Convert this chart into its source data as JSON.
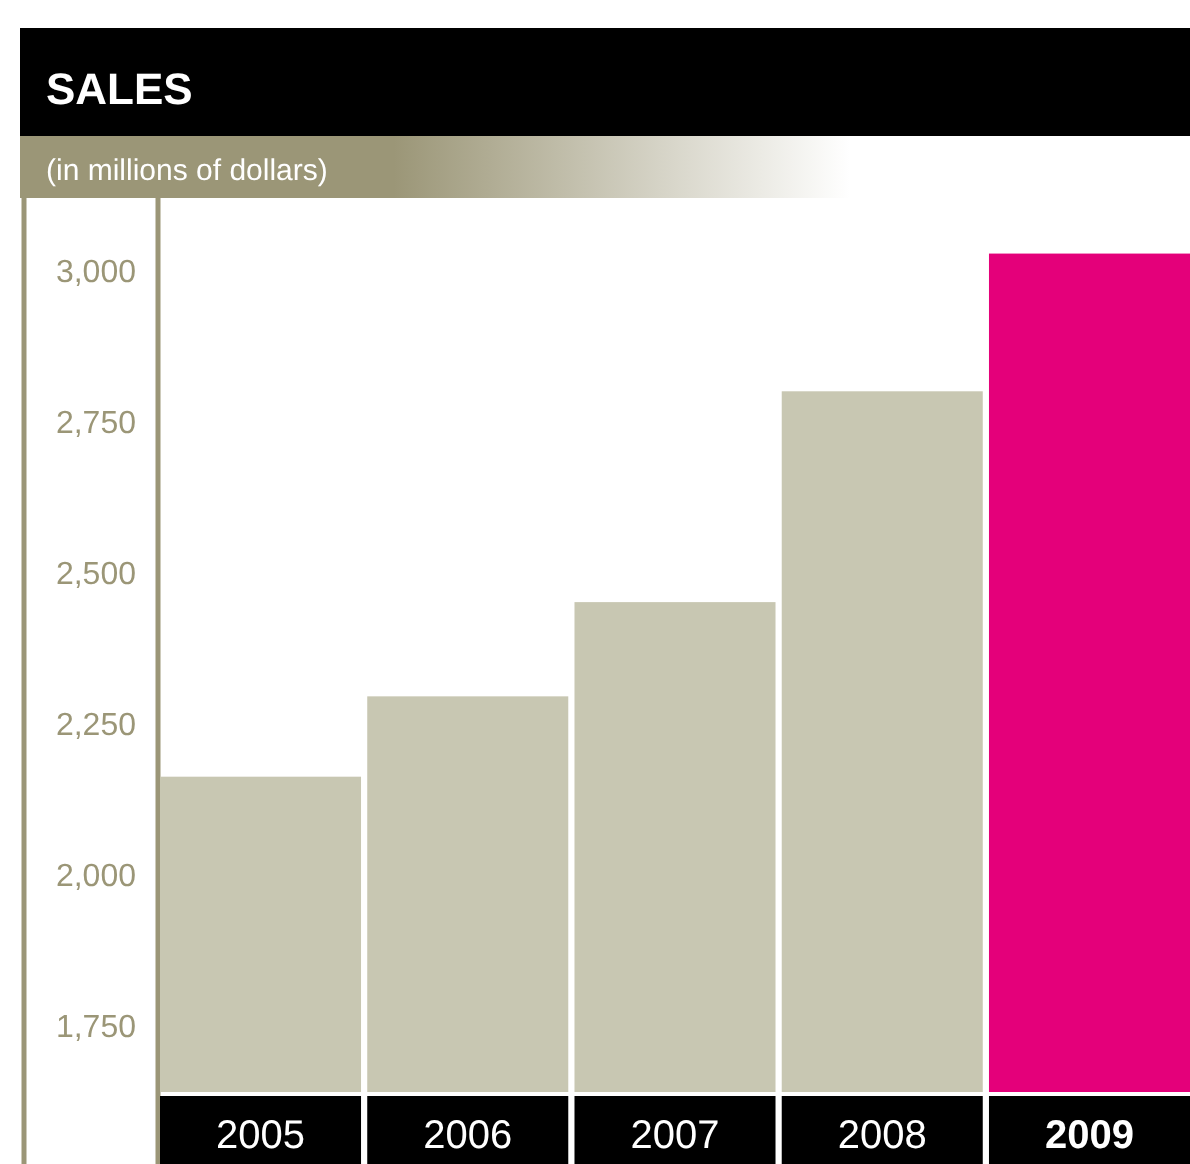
{
  "chart_data": {
    "type": "bar",
    "title": "SALES",
    "subtitle": "(in millions of dollars)",
    "categories": [
      "2005",
      "2006",
      "2007",
      "2008",
      "2009"
    ],
    "values": [
      2162,
      2295,
      2451,
      2800,
      3028
    ],
    "colors": [
      "#c8c7b2",
      "#c8c7b2",
      "#c8c7b2",
      "#c8c7b2",
      "#e4007a"
    ],
    "ylim": [
      1640,
      3120
    ],
    "yticks": [
      {
        "value": 1750,
        "label": "1,750"
      },
      {
        "value": 2000,
        "label": "2,000"
      },
      {
        "value": 2250,
        "label": "2,250"
      },
      {
        "value": 2500,
        "label": "2,500"
      },
      {
        "value": 2750,
        "label": "2,750"
      },
      {
        "value": 3000,
        "label": "3,000"
      }
    ],
    "grid": false
  }
}
